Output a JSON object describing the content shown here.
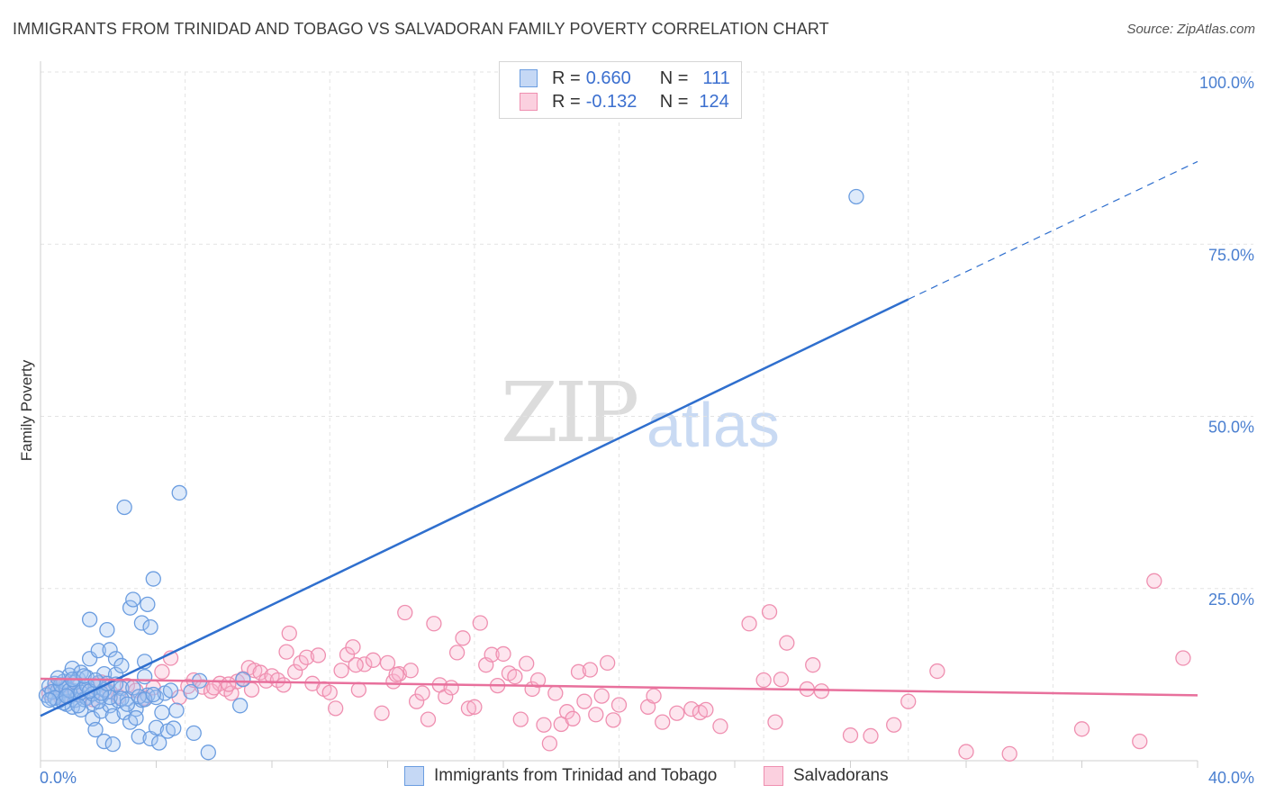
{
  "title": "IMMIGRANTS FROM TRINIDAD AND TOBAGO VS SALVADORAN FAMILY POVERTY CORRELATION CHART",
  "source": "Source: ZipAtlas.com",
  "watermark": {
    "zip": "ZIP",
    "atlas": "atlas"
  },
  "legend": {
    "rows": [
      {
        "r_label": "R =",
        "r_value": "0.660",
        "n_label": "N =",
        "n_value": "111"
      },
      {
        "r_label": "R =",
        "r_value": "-0.132",
        "n_label": "N =",
        "n_value": "124"
      }
    ]
  },
  "chart_data": {
    "type": "scatter",
    "ylabel": "Family Poverty",
    "xlim": [
      0,
      40
    ],
    "ylim": [
      0,
      100
    ],
    "x_tick_labels": [
      "0.0%",
      "40.0%"
    ],
    "y_ticks": [
      {
        "value": 25,
        "label": "25.0%"
      },
      {
        "value": 50,
        "label": "50.0%"
      },
      {
        "value": 75,
        "label": "75.0%"
      },
      {
        "value": 100,
        "label": "100.0%"
      }
    ],
    "grid": true,
    "colors": {
      "blue": "#6b9de0",
      "pink": "#ef8fb0",
      "blue_line": "#2f6fce",
      "pink_line": "#e8709c"
    },
    "series": [
      {
        "name": "Immigrants from Trinidad and Tobago",
        "color": "#6b9de0",
        "trend": {
          "x0": 0,
          "y0": 6.5,
          "x1": 30,
          "y1": 67,
          "dash_to_x": 40,
          "dash_to_y": 87
        },
        "points": [
          [
            0.2,
            9.5
          ],
          [
            0.3,
            10.8
          ],
          [
            0.4,
            9.0
          ],
          [
            0.5,
            11.2
          ],
          [
            0.6,
            8.6
          ],
          [
            0.6,
            10.2
          ],
          [
            0.7,
            9.8
          ],
          [
            0.8,
            11.5
          ],
          [
            0.9,
            8.2
          ],
          [
            0.9,
            10.6
          ],
          [
            1.0,
            12.4
          ],
          [
            1.0,
            9.3
          ],
          [
            1.1,
            7.8
          ],
          [
            1.1,
            13.4
          ],
          [
            1.2,
            10.1
          ],
          [
            1.2,
            8.8
          ],
          [
            1.3,
            11.9
          ],
          [
            1.3,
            9.6
          ],
          [
            1.4,
            12.8
          ],
          [
            1.4,
            7.4
          ],
          [
            1.5,
            10.4
          ],
          [
            1.5,
            8.9
          ],
          [
            1.6,
            12.1
          ],
          [
            1.6,
            9.1
          ],
          [
            1.7,
            14.8
          ],
          [
            1.7,
            20.5
          ],
          [
            1.8,
            8.3
          ],
          [
            1.8,
            6.1
          ],
          [
            1.9,
            10.7
          ],
          [
            1.9,
            4.5
          ],
          [
            2.0,
            11.3
          ],
          [
            2.0,
            16.0
          ],
          [
            2.1,
            9.4
          ],
          [
            2.1,
            7.2
          ],
          [
            2.2,
            12.6
          ],
          [
            2.2,
            2.8
          ],
          [
            2.3,
            19.0
          ],
          [
            2.3,
            10.0
          ],
          [
            2.4,
            16.1
          ],
          [
            2.4,
            8.0
          ],
          [
            2.5,
            6.5
          ],
          [
            2.5,
            2.4
          ],
          [
            2.6,
            12.5
          ],
          [
            2.6,
            14.8
          ],
          [
            2.7,
            8.7
          ],
          [
            2.8,
            13.8
          ],
          [
            2.8,
            10.5
          ],
          [
            2.9,
            36.8
          ],
          [
            2.9,
            7.0
          ],
          [
            3.0,
            9.0
          ],
          [
            3.1,
            22.2
          ],
          [
            3.1,
            5.6
          ],
          [
            3.2,
            23.4
          ],
          [
            3.3,
            7.5
          ],
          [
            3.3,
            6.2
          ],
          [
            3.4,
            3.5
          ],
          [
            3.5,
            8.8
          ],
          [
            3.5,
            20.0
          ],
          [
            3.6,
            12.2
          ],
          [
            3.6,
            14.4
          ],
          [
            3.7,
            9.5
          ],
          [
            3.7,
            22.7
          ],
          [
            3.8,
            19.4
          ],
          [
            3.8,
            3.2
          ],
          [
            3.9,
            26.4
          ],
          [
            4.0,
            4.8
          ],
          [
            4.0,
            9.2
          ],
          [
            4.1,
            2.6
          ],
          [
            4.2,
            7.0
          ],
          [
            4.3,
            9.8
          ],
          [
            4.4,
            4.3
          ],
          [
            4.5,
            10.2
          ],
          [
            4.6,
            4.7
          ],
          [
            4.7,
            7.3
          ],
          [
            4.8,
            38.9
          ],
          [
            5.2,
            10.0
          ],
          [
            5.3,
            4.0
          ],
          [
            5.5,
            11.6
          ],
          [
            5.8,
            1.2
          ],
          [
            6.9,
            8.0
          ],
          [
            7.0,
            11.8
          ],
          [
            28.2,
            81.9
          ],
          [
            0.4,
            10.0
          ],
          [
            0.5,
            9.1
          ],
          [
            0.7,
            11.0
          ],
          [
            0.8,
            8.4
          ],
          [
            1.0,
            10.2
          ],
          [
            1.2,
            11.4
          ],
          [
            1.4,
            9.9
          ],
          [
            1.6,
            10.9
          ],
          [
            1.8,
            9.7
          ],
          [
            2.0,
            8.6
          ],
          [
            2.2,
            10.3
          ],
          [
            2.4,
            9.2
          ],
          [
            2.6,
            11.1
          ],
          [
            2.8,
            9.0
          ],
          [
            3.0,
            8.2
          ],
          [
            3.2,
            10.6
          ],
          [
            3.4,
            9.3
          ],
          [
            3.6,
            8.9
          ],
          [
            3.9,
            9.6
          ],
          [
            0.3,
            8.8
          ],
          [
            0.6,
            12.0
          ],
          [
            0.9,
            9.4
          ],
          [
            1.1,
            11.8
          ],
          [
            1.3,
            8.0
          ],
          [
            1.5,
            12.3
          ],
          [
            1.7,
            10.1
          ],
          [
            1.9,
            11.7
          ],
          [
            2.1,
            9.8
          ],
          [
            2.3,
            11.2
          ]
        ]
      },
      {
        "name": "Salvadorans",
        "color": "#ef8fb0",
        "trend": {
          "x0": 0,
          "y0": 11.9,
          "x1": 40,
          "y1": 9.5
        },
        "points": [
          [
            0.3,
            9.8
          ],
          [
            0.5,
            10.6
          ],
          [
            0.7,
            9.2
          ],
          [
            0.9,
            11.1
          ],
          [
            1.2,
            9.6
          ],
          [
            1.5,
            10.3
          ],
          [
            1.8,
            8.9
          ],
          [
            2.1,
            11.4
          ],
          [
            2.4,
            10.0
          ],
          [
            2.7,
            9.3
          ],
          [
            3.0,
            10.9
          ],
          [
            3.3,
            10.2
          ],
          [
            3.6,
            9.1
          ],
          [
            3.9,
            10.6
          ],
          [
            4.2,
            12.9
          ],
          [
            4.5,
            14.9
          ],
          [
            4.8,
            9.2
          ],
          [
            5.1,
            10.8
          ],
          [
            5.3,
            11.7
          ],
          [
            5.6,
            10.7
          ],
          [
            5.9,
            10.1
          ],
          [
            6.2,
            11.2
          ],
          [
            6.4,
            10.4
          ],
          [
            6.6,
            9.8
          ],
          [
            6.8,
            11.5
          ],
          [
            7.0,
            11.9
          ],
          [
            7.2,
            13.5
          ],
          [
            7.4,
            13.1
          ],
          [
            7.6,
            12.8
          ],
          [
            7.8,
            11.6
          ],
          [
            8.0,
            12.3
          ],
          [
            8.2,
            11.7
          ],
          [
            8.5,
            15.8
          ],
          [
            8.6,
            18.5
          ],
          [
            8.8,
            12.9
          ],
          [
            9.0,
            14.2
          ],
          [
            9.2,
            15.0
          ],
          [
            9.4,
            11.2
          ],
          [
            9.6,
            15.3
          ],
          [
            9.8,
            10.4
          ],
          [
            10.0,
            9.9
          ],
          [
            10.2,
            7.6
          ],
          [
            10.4,
            13.1
          ],
          [
            10.6,
            15.4
          ],
          [
            10.8,
            16.5
          ],
          [
            11.0,
            10.3
          ],
          [
            11.2,
            14.0
          ],
          [
            11.5,
            14.6
          ],
          [
            11.8,
            6.9
          ],
          [
            12.0,
            14.2
          ],
          [
            12.2,
            11.5
          ],
          [
            12.4,
            12.6
          ],
          [
            12.6,
            21.5
          ],
          [
            12.8,
            13.1
          ],
          [
            13.0,
            8.6
          ],
          [
            13.2,
            9.8
          ],
          [
            13.4,
            6.0
          ],
          [
            13.6,
            19.9
          ],
          [
            13.8,
            11.0
          ],
          [
            14.0,
            9.3
          ],
          [
            14.2,
            10.6
          ],
          [
            14.4,
            15.7
          ],
          [
            14.6,
            17.8
          ],
          [
            14.8,
            7.6
          ],
          [
            15.0,
            7.8
          ],
          [
            15.2,
            20.0
          ],
          [
            15.4,
            13.9
          ],
          [
            15.6,
            15.4
          ],
          [
            15.8,
            10.9
          ],
          [
            16.0,
            15.5
          ],
          [
            16.2,
            12.7
          ],
          [
            16.4,
            12.2
          ],
          [
            16.6,
            6.0
          ],
          [
            16.8,
            14.1
          ],
          [
            17.0,
            10.4
          ],
          [
            17.2,
            11.7
          ],
          [
            17.4,
            5.2
          ],
          [
            17.6,
            2.5
          ],
          [
            17.8,
            9.8
          ],
          [
            18.0,
            5.3
          ],
          [
            18.2,
            7.1
          ],
          [
            18.4,
            6.1
          ],
          [
            18.6,
            12.9
          ],
          [
            18.8,
            8.6
          ],
          [
            19.0,
            13.2
          ],
          [
            19.2,
            6.7
          ],
          [
            19.4,
            9.4
          ],
          [
            19.6,
            14.2
          ],
          [
            19.8,
            5.9
          ],
          [
            20.0,
            8.1
          ],
          [
            21.0,
            7.8
          ],
          [
            21.2,
            9.4
          ],
          [
            21.5,
            5.6
          ],
          [
            22.0,
            6.9
          ],
          [
            22.5,
            7.5
          ],
          [
            22.8,
            7.0
          ],
          [
            23.0,
            7.4
          ],
          [
            23.5,
            5.0
          ],
          [
            24.5,
            19.9
          ],
          [
            25.0,
            11.7
          ],
          [
            25.2,
            21.6
          ],
          [
            25.4,
            5.6
          ],
          [
            25.6,
            11.8
          ],
          [
            25.8,
            17.1
          ],
          [
            26.5,
            10.4
          ],
          [
            26.7,
            13.9
          ],
          [
            27.0,
            10.1
          ],
          [
            28.0,
            3.7
          ],
          [
            28.7,
            3.6
          ],
          [
            29.5,
            5.2
          ],
          [
            30.0,
            8.6
          ],
          [
            31.0,
            13.0
          ],
          [
            32.0,
            1.3
          ],
          [
            33.5,
            1.0
          ],
          [
            36.0,
            4.6
          ],
          [
            38.0,
            2.8
          ],
          [
            38.5,
            26.1
          ],
          [
            39.5,
            14.9
          ],
          [
            6.0,
            10.6
          ],
          [
            6.5,
            11.1
          ],
          [
            7.3,
            10.3
          ],
          [
            8.4,
            11.0
          ],
          [
            10.9,
            13.9
          ],
          [
            12.3,
            12.5
          ]
        ]
      }
    ]
  }
}
